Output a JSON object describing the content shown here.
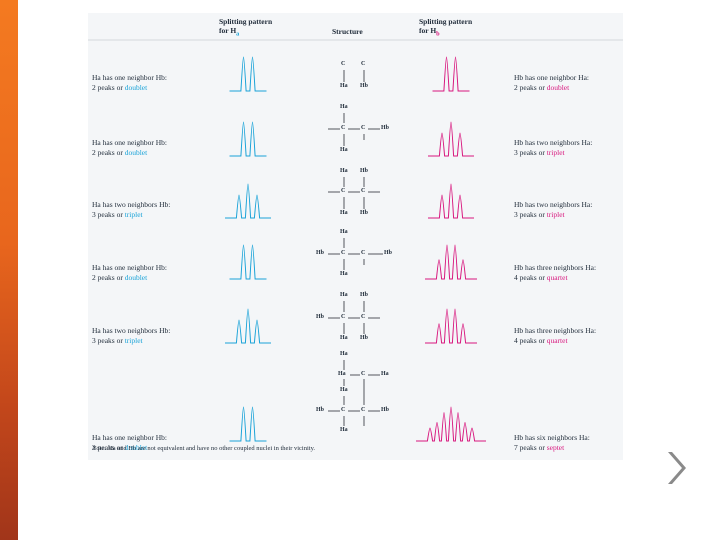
{
  "figure": {
    "headers": {
      "left": {
        "line1": "Splitting pattern",
        "line2": "for H",
        "sub": "a"
      },
      "middle": "Structure",
      "right": {
        "line1": "Splitting pattern",
        "line2": "for H",
        "sub": "b"
      }
    },
    "rows": [
      {
        "left_l1": "Ha has one neighbor Hb:",
        "left_l2a": "2 peaks or ",
        "left_l2b": "doublet",
        "right_l1": "Hb has one neighbor Ha:",
        "right_l2a": "2 peaks or ",
        "right_l2b": "doublet",
        "left_peaks": 2,
        "right_peaks": 2
      },
      {
        "left_l1": "Ha has one neighbor Hb:",
        "left_l2a": "2 peaks or ",
        "left_l2b": "doublet",
        "right_l1": "Hb has two neighbors Ha:",
        "right_l2a": "3 peaks or ",
        "right_l2b": "triplet",
        "left_peaks": 2,
        "right_peaks": 3
      },
      {
        "left_l1": "Ha has two neighbors Hb:",
        "left_l2a": "3 peaks or ",
        "left_l2b": "triplet",
        "right_l1": "Hb has two neighbors Ha:",
        "right_l2a": "3 peaks or ",
        "right_l2b": "triplet",
        "left_peaks": 3,
        "right_peaks": 3
      },
      {
        "left_l1": "Ha has one neighbor Hb:",
        "left_l2a": "2 peaks or ",
        "left_l2b": "doublet",
        "right_l1": "Hb has three neighbors Ha:",
        "right_l2a": "4 peaks or ",
        "right_l2b": "quartet",
        "left_peaks": 2,
        "right_peaks": 4
      },
      {
        "left_l1": "Ha has two neighbors Hb:",
        "left_l2a": "3 peaks or ",
        "left_l2b": "triplet",
        "right_l1": "Hb has three neighbors Ha:",
        "right_l2a": "4 peaks or ",
        "right_l2b": "quartet",
        "left_peaks": 3,
        "right_peaks": 4
      },
      {
        "left_l1": "Ha has one neighbor Hb:",
        "left_l2a": "2 peaks or ",
        "left_l2b": "doublet",
        "right_l1": "Hb has six neighbors Ha:",
        "right_l2a": "7 peaks or ",
        "right_l2b": "septet",
        "left_peaks": 2,
        "right_peaks": 7
      }
    ],
    "structure_labels": {
      "c": "C",
      "ha": "Ha",
      "hb": "Hb"
    },
    "footnote_label": "Note:",
    "footnote_text": "Ha and Hb are not equivalent and have no other coupled nuclei in their vicinity."
  },
  "nav": {
    "next_icon": "chevron-right-icon"
  },
  "colors": {
    "blue": "#1aa3d8",
    "pink": "#d8177e",
    "accent": "#f47a20",
    "chevron": "#8a8a8a"
  }
}
